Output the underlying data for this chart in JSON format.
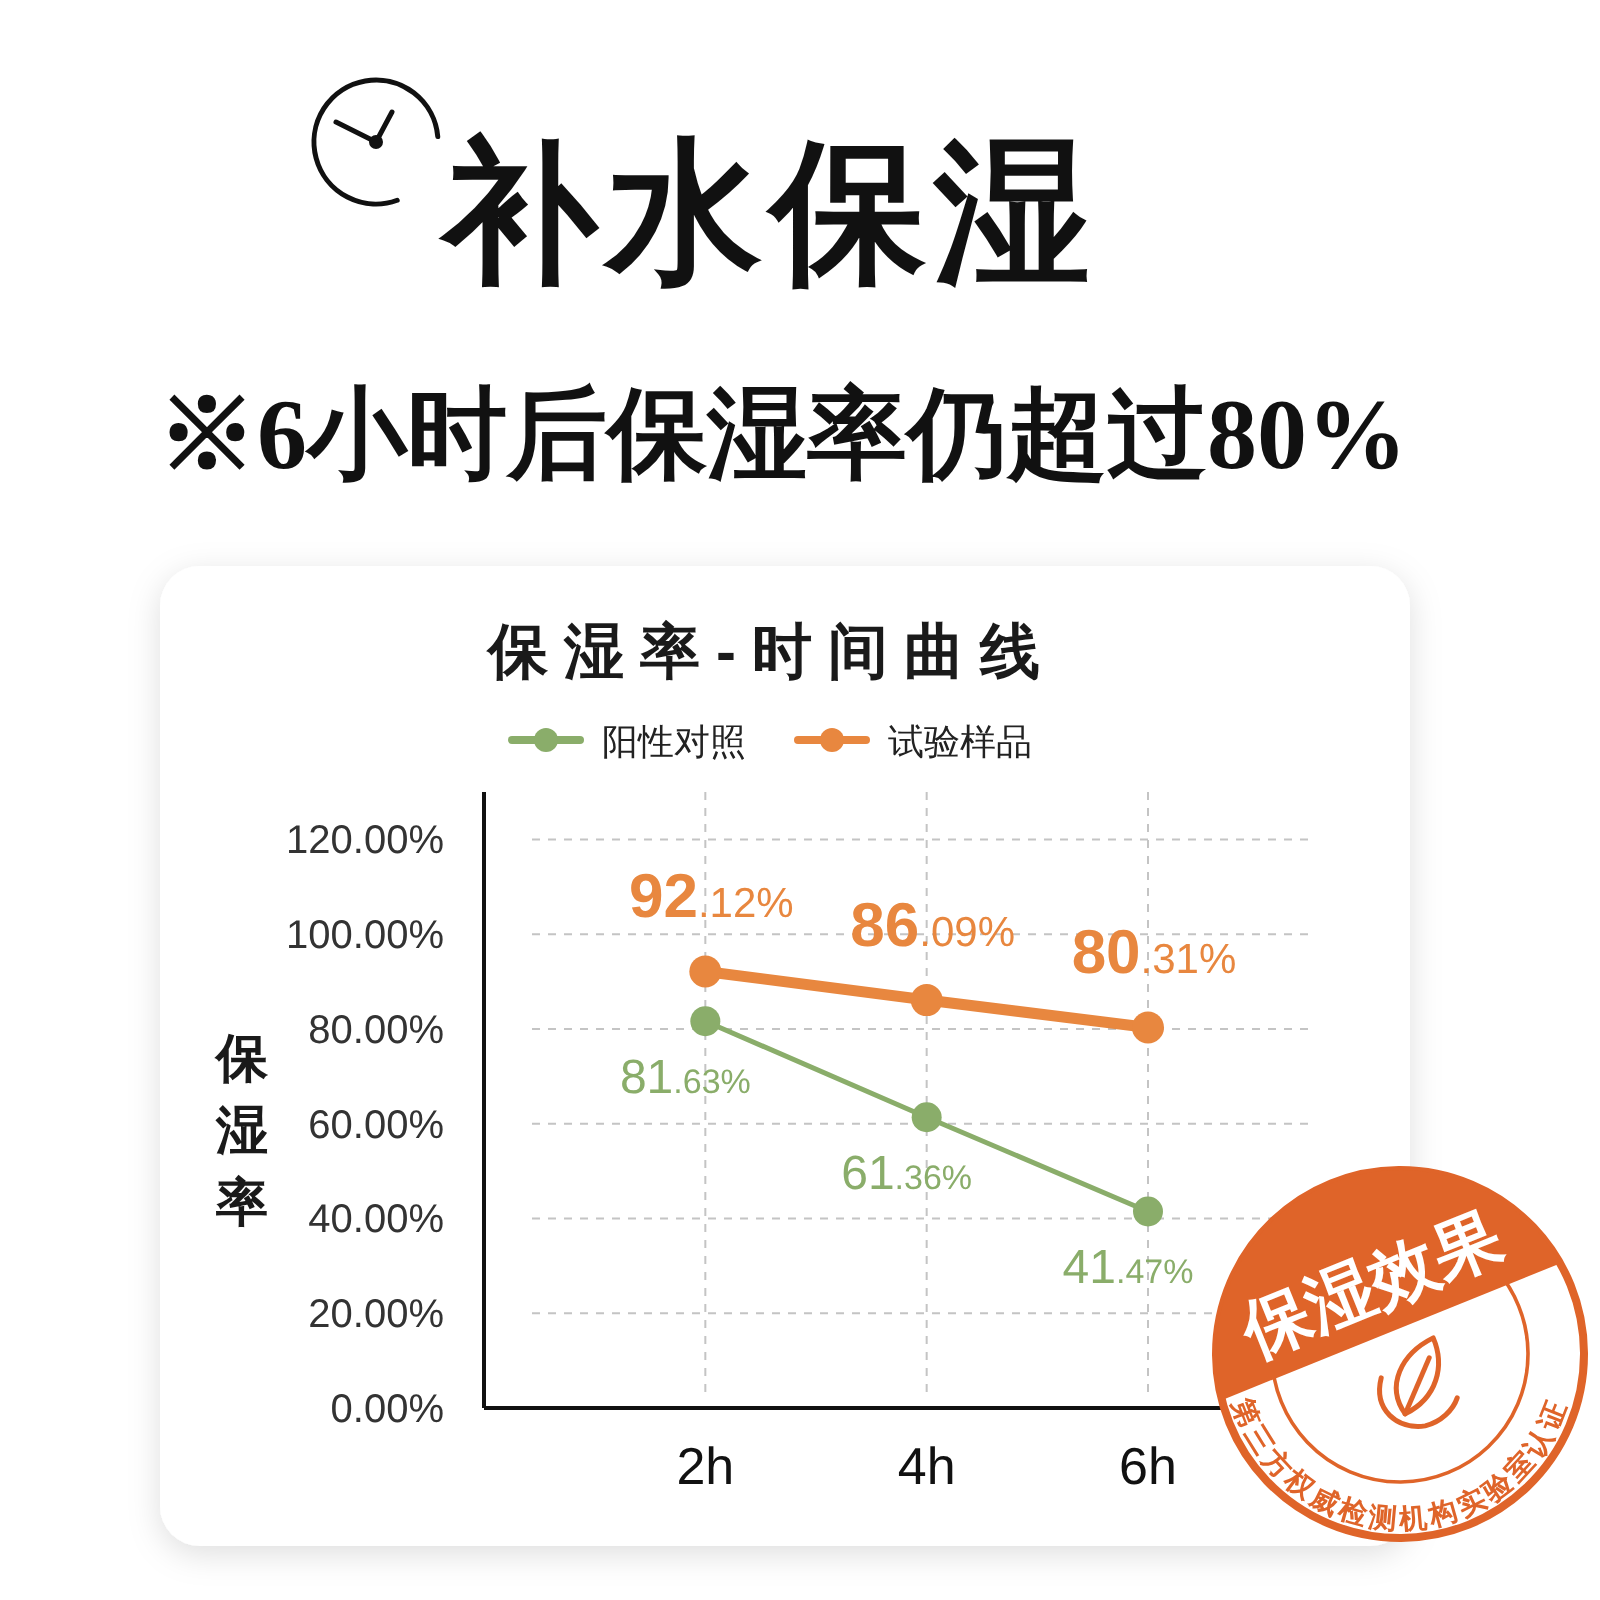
{
  "chart_data": {
    "type": "line",
    "title": "补水保湿",
    "subtitle": "※6小时后保湿率仍超过80%",
    "annotations": [
      "保湿率-时间曲线",
      "保湿效果",
      "第三方权威检测机构实验室认证"
    ],
    "ylabel": "保湿率",
    "categories": [
      "2h",
      "4h",
      "6h"
    ],
    "series": [
      {
        "name": "阳性对照",
        "color": "#8aad6a",
        "values": [
          81.63,
          61.36,
          41.47
        ],
        "value_labels": [
          "81.63%",
          "61.36%",
          "41.47%"
        ]
      },
      {
        "name": "试验样品",
        "color": "#e8873f",
        "values": [
          92.12,
          86.09,
          80.31
        ],
        "value_labels": [
          "92.12%",
          "86.09%",
          "80.31%"
        ]
      }
    ],
    "ylim": [
      0,
      130
    ],
    "yticks": [
      {
        "value": 0,
        "label": "0.00%"
      },
      {
        "value": 20,
        "label": "20.00%"
      },
      {
        "value": 40,
        "label": "40.00%"
      },
      {
        "value": 60,
        "label": "60.00%"
      },
      {
        "value": 80,
        "label": "80.00%"
      },
      {
        "value": 100,
        "label": "100.00%"
      },
      {
        "value": 120,
        "label": "120.00%"
      }
    ],
    "grid": true,
    "legend": "top",
    "marker": "circle",
    "line_style": "solid"
  }
}
